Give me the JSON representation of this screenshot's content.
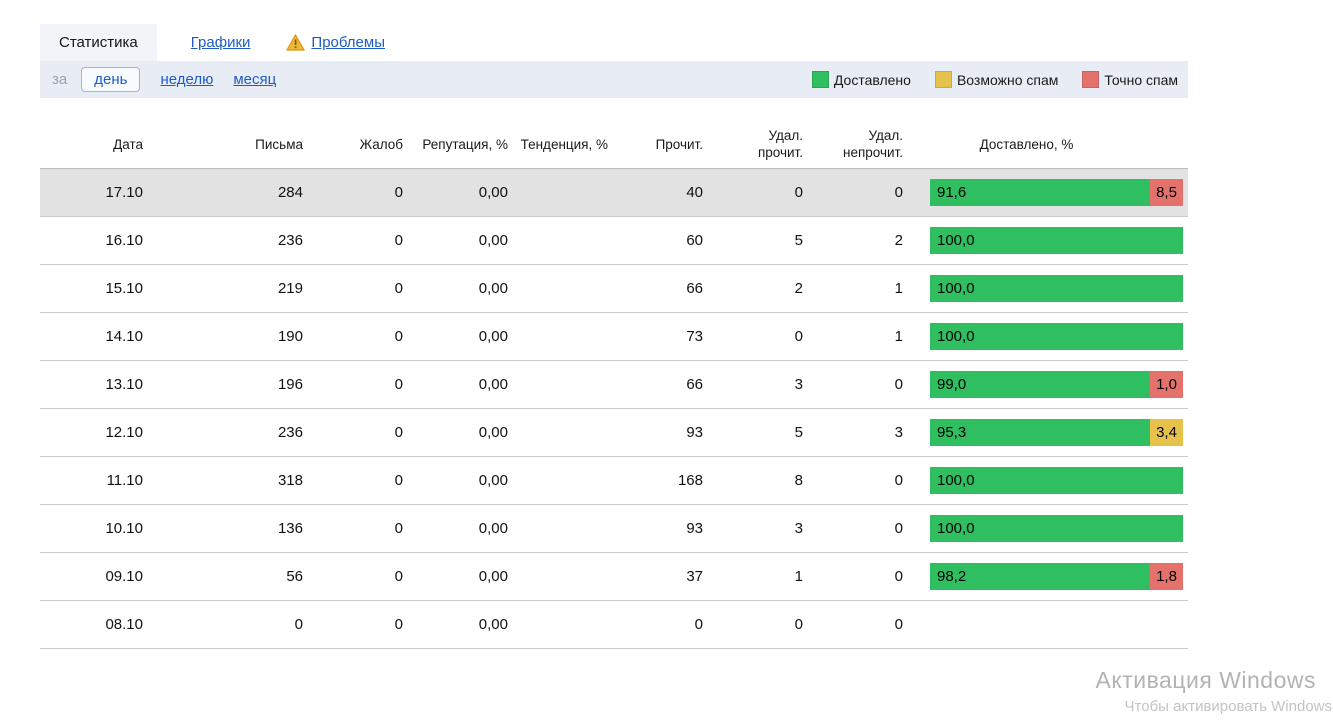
{
  "tabs": {
    "statistics": "Статистика",
    "charts": "Графики",
    "problems": "Проблемы"
  },
  "period": {
    "prefix": "за",
    "day": "день",
    "week": "неделю",
    "month": "месяц"
  },
  "legend": [
    {
      "label": "Доставлено",
      "color": "#2fbe60"
    },
    {
      "label": "Возможно спам",
      "color": "#e6c24b"
    },
    {
      "label": "Точно спам",
      "color": "#e5716d"
    }
  ],
  "colors": {
    "delivered": "#2fbe60",
    "possible_spam": "#e6c24b",
    "sure_spam": "#e5716d"
  },
  "table": {
    "headers": [
      "Дата",
      "Письма",
      "Жалоб",
      "Репутация, %",
      "Тенденция, %",
      "Прочит.",
      "Удал.\nпрочит.",
      "Удал.\nнепрочит.",
      "Доставлено, %"
    ],
    "rows": [
      {
        "date": "17.10",
        "letters": "284",
        "complaints": "0",
        "reputation": "0,00",
        "trend": "",
        "read": "40",
        "deleted_read": "0",
        "deleted_unread": "0",
        "delivered": "91,6",
        "spam": "8,5",
        "spam_kind": "sure",
        "highlighted": true
      },
      {
        "date": "16.10",
        "letters": "236",
        "complaints": "0",
        "reputation": "0,00",
        "trend": "",
        "read": "60",
        "deleted_read": "5",
        "deleted_unread": "2",
        "delivered": "100,0",
        "spam": "",
        "spam_kind": "",
        "highlighted": false
      },
      {
        "date": "15.10",
        "letters": "219",
        "complaints": "0",
        "reputation": "0,00",
        "trend": "",
        "read": "66",
        "deleted_read": "2",
        "deleted_unread": "1",
        "delivered": "100,0",
        "spam": "",
        "spam_kind": "",
        "highlighted": false
      },
      {
        "date": "14.10",
        "letters": "190",
        "complaints": "0",
        "reputation": "0,00",
        "trend": "",
        "read": "73",
        "deleted_read": "0",
        "deleted_unread": "1",
        "delivered": "100,0",
        "spam": "",
        "spam_kind": "",
        "highlighted": false
      },
      {
        "date": "13.10",
        "letters": "196",
        "complaints": "0",
        "reputation": "0,00",
        "trend": "",
        "read": "66",
        "deleted_read": "3",
        "deleted_unread": "0",
        "delivered": "99,0",
        "spam": "1,0",
        "spam_kind": "sure",
        "highlighted": false
      },
      {
        "date": "12.10",
        "letters": "236",
        "complaints": "0",
        "reputation": "0,00",
        "trend": "",
        "read": "93",
        "deleted_read": "5",
        "deleted_unread": "3",
        "delivered": "95,3",
        "spam": "3,4",
        "spam_kind": "possible",
        "highlighted": false
      },
      {
        "date": "11.10",
        "letters": "318",
        "complaints": "0",
        "reputation": "0,00",
        "trend": "",
        "read": "168",
        "deleted_read": "8",
        "deleted_unread": "0",
        "delivered": "100,0",
        "spam": "",
        "spam_kind": "",
        "highlighted": false
      },
      {
        "date": "10.10",
        "letters": "136",
        "complaints": "0",
        "reputation": "0,00",
        "trend": "",
        "read": "93",
        "deleted_read": "3",
        "deleted_unread": "0",
        "delivered": "100,0",
        "spam": "",
        "spam_kind": "",
        "highlighted": false
      },
      {
        "date": "09.10",
        "letters": "56",
        "complaints": "0",
        "reputation": "0,00",
        "trend": "",
        "read": "37",
        "deleted_read": "1",
        "deleted_unread": "0",
        "delivered": "98,2",
        "spam": "1,8",
        "spam_kind": "sure",
        "highlighted": false
      },
      {
        "date": "08.10",
        "letters": "0",
        "complaints": "0",
        "reputation": "0,00",
        "trend": "",
        "read": "0",
        "deleted_read": "0",
        "deleted_unread": "0",
        "delivered": "",
        "spam": "",
        "spam_kind": "",
        "highlighted": false
      }
    ]
  },
  "watermark": {
    "line1": "Активация Windows",
    "line2": "Чтобы активировать Windows"
  }
}
